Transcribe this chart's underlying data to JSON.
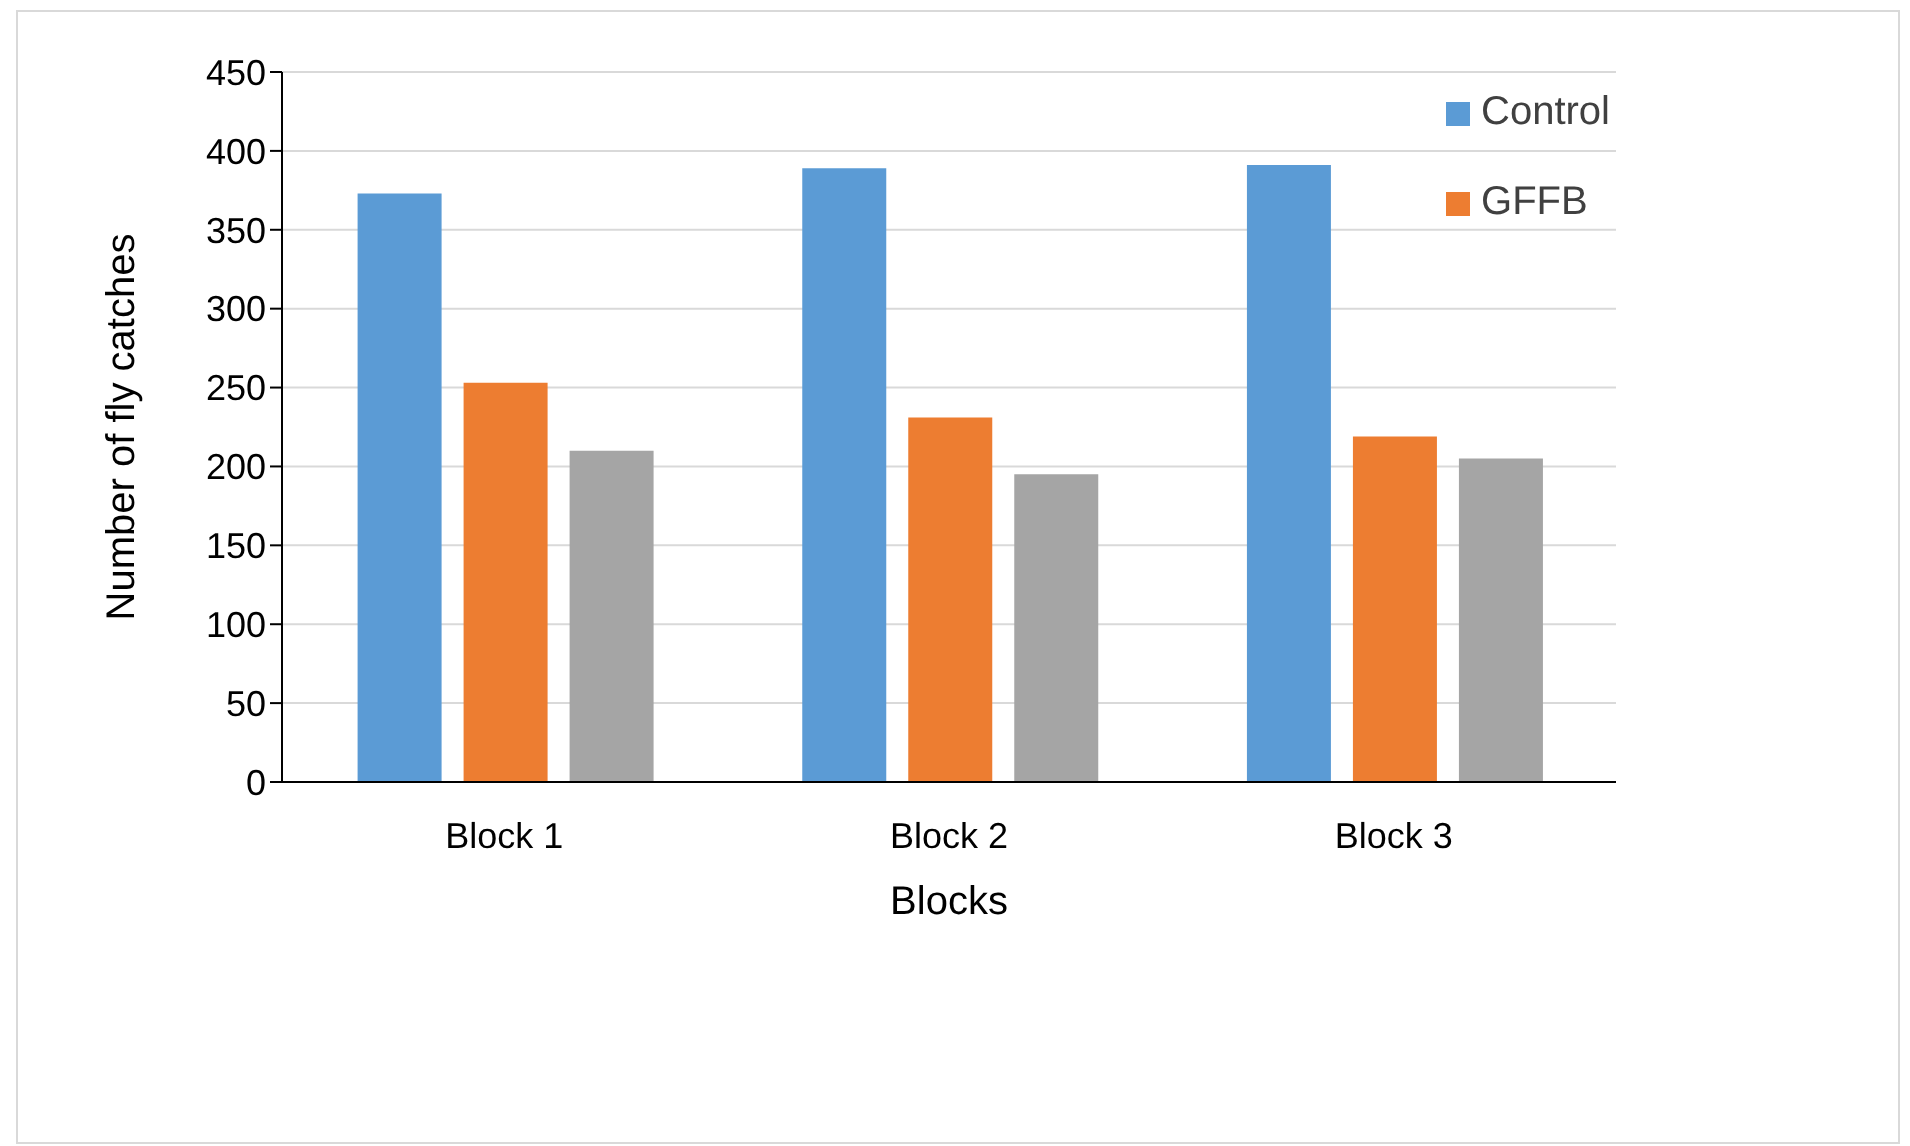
{
  "chart_data": {
    "type": "bar",
    "xlabel": "Blocks",
    "ylabel": "Number of fly catches",
    "categories": [
      "Block 1",
      "Block 2",
      "Block 3"
    ],
    "series": [
      {
        "name": "Control",
        "color": "#5b9bd5",
        "values": [
          373,
          389,
          391
        ]
      },
      {
        "name": "GFFB",
        "color": "#ed7d31",
        "values": [
          253,
          231,
          219
        ]
      },
      {
        "color": "#a5a5a5",
        "values": [
          210,
          195,
          205
        ]
      }
    ],
    "ylim": [
      0,
      450
    ],
    "yticks": [
      0,
      50,
      100,
      150,
      200,
      250,
      300,
      350,
      400,
      450
    ],
    "grid": "y",
    "legend": "top right"
  }
}
